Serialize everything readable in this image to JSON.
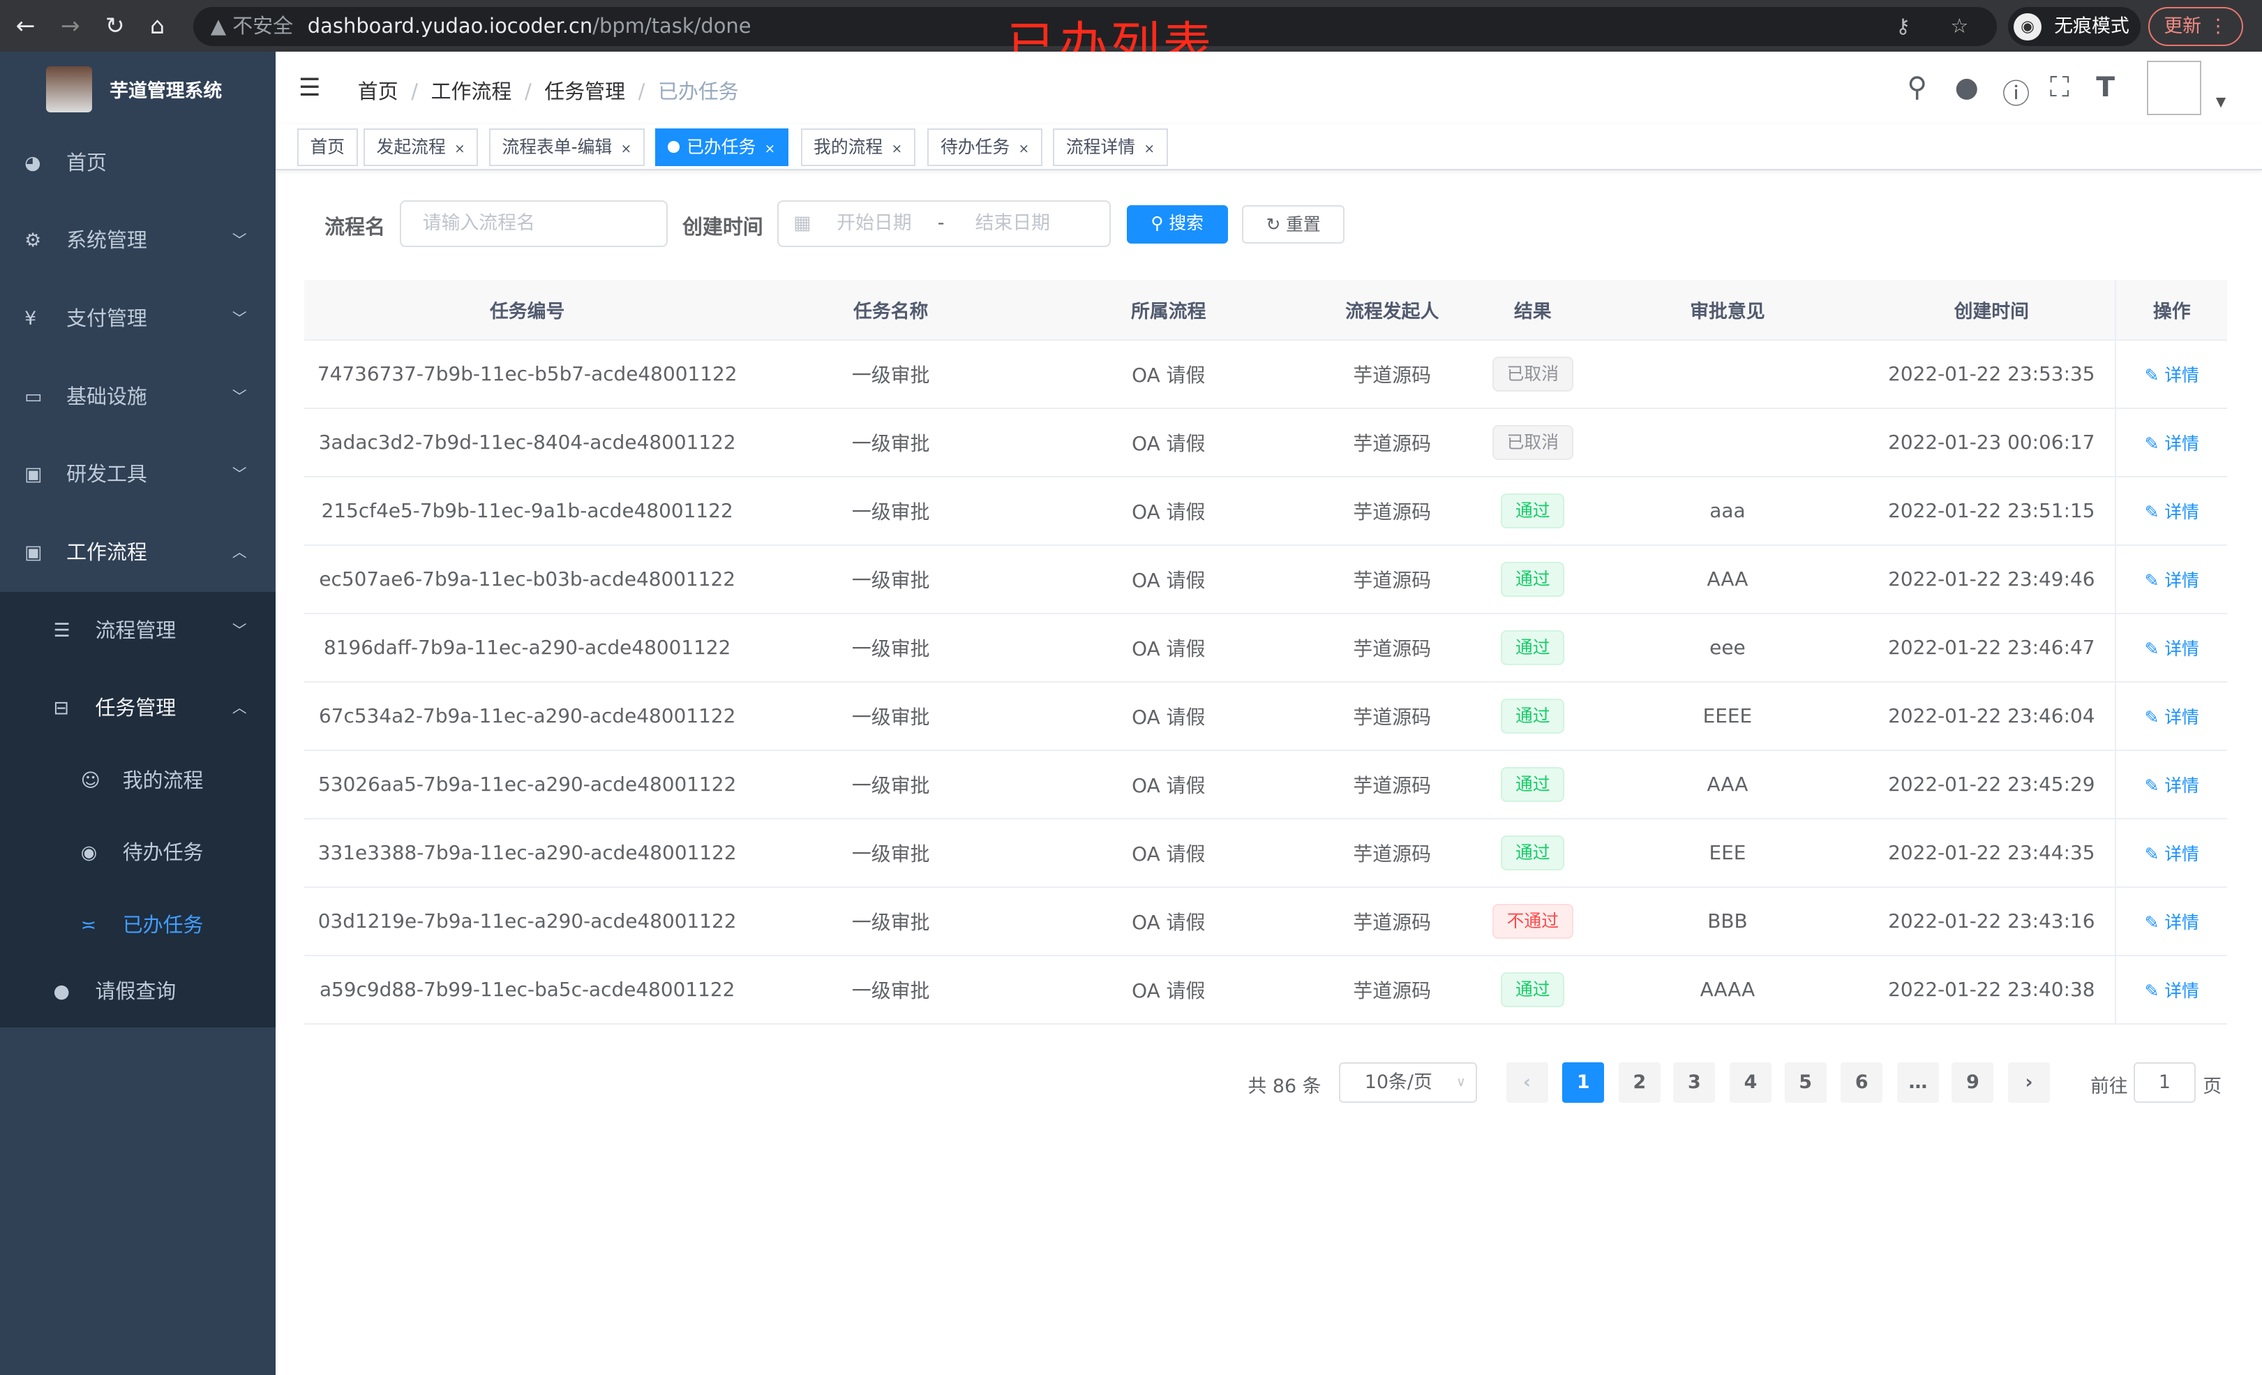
{
  "browser": {
    "insecure_label": "不安全",
    "url_host": "dashboard.yudao.iocoder.cn",
    "url_path": "/bpm/task/done",
    "incognito_label": "无痕模式",
    "update_label": "更新"
  },
  "annotation_title": "已办列表",
  "sidebar": {
    "title": "芋道管理系统",
    "items": [
      {
        "label": "首页",
        "icon": "dashboard-icon"
      },
      {
        "label": "系统管理",
        "icon": "gear-icon"
      },
      {
        "label": "支付管理",
        "icon": "yen-icon"
      },
      {
        "label": "基础设施",
        "icon": "monitor-icon"
      },
      {
        "label": "研发工具",
        "icon": "toolbox-icon"
      },
      {
        "label": "工作流程",
        "icon": "toolbox-icon"
      },
      {
        "label": "流程管理",
        "icon": "list-icon"
      },
      {
        "label": "任务管理",
        "icon": "tree-icon"
      },
      {
        "label": "我的流程",
        "icon": "people-icon"
      },
      {
        "label": "待办任务",
        "icon": "eye-icon"
      },
      {
        "label": "已办任务",
        "icon": "done-icon"
      },
      {
        "label": "请假查询",
        "icon": "user-icon"
      }
    ]
  },
  "breadcrumb": [
    "首页",
    "工作流程",
    "任务管理",
    "已办任务"
  ],
  "tags": [
    "首页",
    "发起流程",
    "流程表单-编辑",
    "已办任务",
    "我的流程",
    "待办任务",
    "流程详情"
  ],
  "search": {
    "name_label": "流程名",
    "name_placeholder": "请输入流程名",
    "time_label": "创建时间",
    "start_placeholder": "开始日期",
    "range_sep": "-",
    "end_placeholder": "结束日期",
    "search_btn": "搜索",
    "reset_btn": "重置"
  },
  "table": {
    "headers": [
      "任务编号",
      "任务名称",
      "所属流程",
      "流程发起人",
      "结果",
      "审批意见",
      "创建时间",
      "操作"
    ],
    "rows": [
      {
        "id": "74736737-7b9b-11ec-b5b7-acde48001122",
        "name": "一级审批",
        "process": "OA 请假",
        "starter": "芋道源码",
        "result": "已取消",
        "comment": "",
        "time": "2022-01-22 23:53:35",
        "op": "详情"
      },
      {
        "id": "3adac3d2-7b9d-11ec-8404-acde48001122",
        "name": "一级审批",
        "process": "OA 请假",
        "starter": "芋道源码",
        "result": "已取消",
        "comment": "",
        "time": "2022-01-23 00:06:17",
        "op": "详情"
      },
      {
        "id": "215cf4e5-7b9b-11ec-9a1b-acde48001122",
        "name": "一级审批",
        "process": "OA 请假",
        "starter": "芋道源码",
        "result": "通过",
        "comment": "aaa",
        "time": "2022-01-22 23:51:15",
        "op": "详情"
      },
      {
        "id": "ec507ae6-7b9a-11ec-b03b-acde48001122",
        "name": "一级审批",
        "process": "OA 请假",
        "starter": "芋道源码",
        "result": "通过",
        "comment": "AAA",
        "time": "2022-01-22 23:49:46",
        "op": "详情"
      },
      {
        "id": "8196daff-7b9a-11ec-a290-acde48001122",
        "name": "一级审批",
        "process": "OA 请假",
        "starter": "芋道源码",
        "result": "通过",
        "comment": "eee",
        "time": "2022-01-22 23:46:47",
        "op": "详情"
      },
      {
        "id": "67c534a2-7b9a-11ec-a290-acde48001122",
        "name": "一级审批",
        "process": "OA 请假",
        "starter": "芋道源码",
        "result": "通过",
        "comment": "EEEE",
        "time": "2022-01-22 23:46:04",
        "op": "详情"
      },
      {
        "id": "53026aa5-7b9a-11ec-a290-acde48001122",
        "name": "一级审批",
        "process": "OA 请假",
        "starter": "芋道源码",
        "result": "通过",
        "comment": "AAA",
        "time": "2022-01-22 23:45:29",
        "op": "详情"
      },
      {
        "id": "331e3388-7b9a-11ec-a290-acde48001122",
        "name": "一级审批",
        "process": "OA 请假",
        "starter": "芋道源码",
        "result": "通过",
        "comment": "EEE",
        "time": "2022-01-22 23:44:35",
        "op": "详情"
      },
      {
        "id": "03d1219e-7b9a-11ec-a290-acde48001122",
        "name": "一级审批",
        "process": "OA 请假",
        "starter": "芋道源码",
        "result": "不通过",
        "comment": "BBB",
        "time": "2022-01-22 23:43:16",
        "op": "详情"
      },
      {
        "id": "a59c9d88-7b99-11ec-ba5c-acde48001122",
        "name": "一级审批",
        "process": "OA 请假",
        "starter": "芋道源码",
        "result": "通过",
        "comment": "AAAA",
        "time": "2022-01-22 23:40:38",
        "op": "详情"
      }
    ]
  },
  "pagination": {
    "total_text": "共 86 条",
    "page_size": "10条/页",
    "pages": [
      "1",
      "2",
      "3",
      "4",
      "5",
      "6",
      "…",
      "9"
    ],
    "current": "1",
    "goto_label": "前往",
    "goto_value": "1",
    "page_suffix": "页"
  },
  "colors": {
    "primary": "#1890ff",
    "sidebar": "#304156",
    "success": "#13ce66",
    "danger": "#ff4949",
    "info": "#909399"
  }
}
